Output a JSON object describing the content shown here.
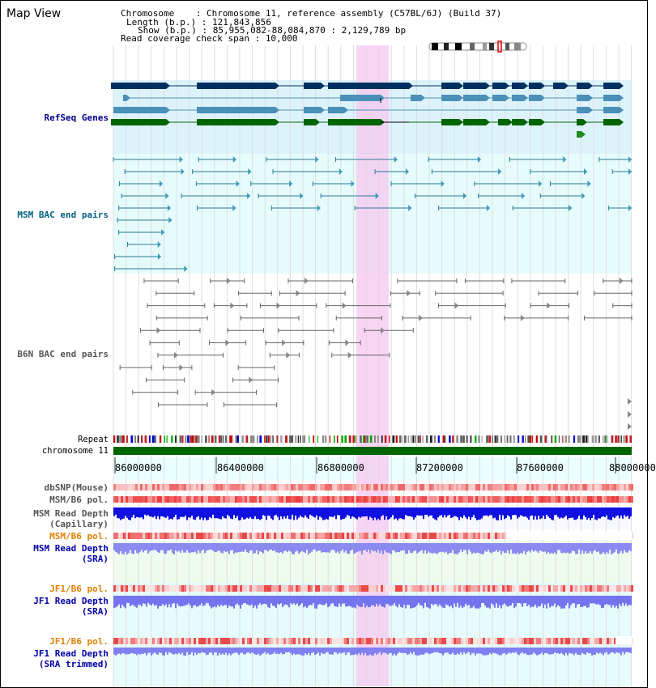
{
  "app_title": "Map View",
  "header": {
    "chromosome_label": "Chromosome    : ",
    "chromosome_value": "Chromosome 11, reference assembly (C57BL/6J) (Build 37)",
    "length_label": "Length (b.p.) : ",
    "length_value": "121,843,856",
    "show_label": "Show (b.p.) : ",
    "show_value": "85,955,082-88,084,870 : 2,129,789 bp",
    "coverage_label": "Read coverage check span : ",
    "coverage_value": "10,000"
  },
  "tracks": {
    "refseq": "RefSeq Genes",
    "msm_bac": "MSM BAC end pairs",
    "b6n_bac": "B6N BAC end pairs",
    "repeat": "Repeat",
    "chromosome": "chromosome 11",
    "dbsnp": "dbSNP(Mouse)",
    "msm_b6_pol": "MSM/B6 pol.",
    "msm_depth_cap_1": "MSM Read Depth",
    "msm_depth_cap_2": "(Capillary)",
    "msm_b6_pol_sra": "MSM/B6 pol.",
    "msm_depth_sra_1": "MSM Read Depth",
    "msm_depth_sra_2": "(SRA)",
    "jf1_pol_1": "JF1/B6 pol.",
    "jf1_depth_1": "JF1 Read Depth",
    "jf1_depth_1b": "(SRA)",
    "jf1_pol_2": "JF1/B6 pol.",
    "jf1_depth_2": "JF1 Read Depth",
    "jf1_depth_2b": "(SRA trimmed)"
  },
  "axis": {
    "ticks": [
      "86000000",
      "86400000",
      "86800000",
      "87200000",
      "87600000",
      "88000000"
    ]
  },
  "colors": {
    "refseq_label": "#00008b",
    "msm_label": "#006080",
    "b6n_label": "#555555",
    "orange_label": "#e08000",
    "blue_label": "#0000aa",
    "highlight": "#f8d0f0",
    "chromosome_bar": "#006400"
  }
}
